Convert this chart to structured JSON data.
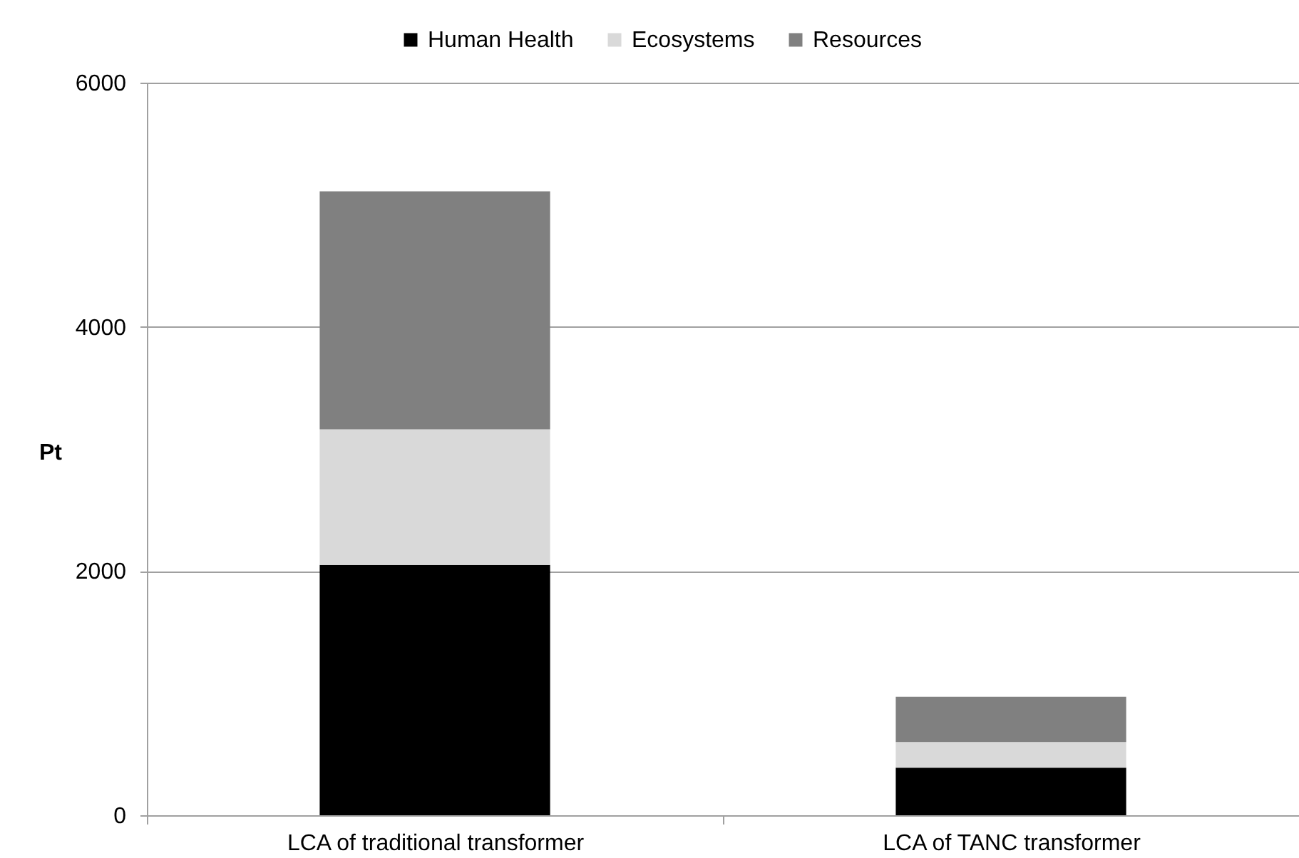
{
  "chart_data": {
    "type": "bar",
    "ylabel": "Pt",
    "categories": [
      "LCA of traditional transformer",
      "LCA of TANC transformer"
    ],
    "series": [
      {
        "name": "Human Health",
        "color": "#000000",
        "values": [
          2050,
          390
        ]
      },
      {
        "name": "Ecosystems",
        "color": "#d9d9d9",
        "values": [
          1110,
          210
        ]
      },
      {
        "name": "Resources",
        "color": "#808080",
        "values": [
          1950,
          370
        ]
      }
    ],
    "stacked": true,
    "ylim": [
      0,
      6000
    ],
    "yticks": [
      0,
      2000,
      4000,
      6000
    ],
    "grid": "y",
    "legend": "top"
  }
}
